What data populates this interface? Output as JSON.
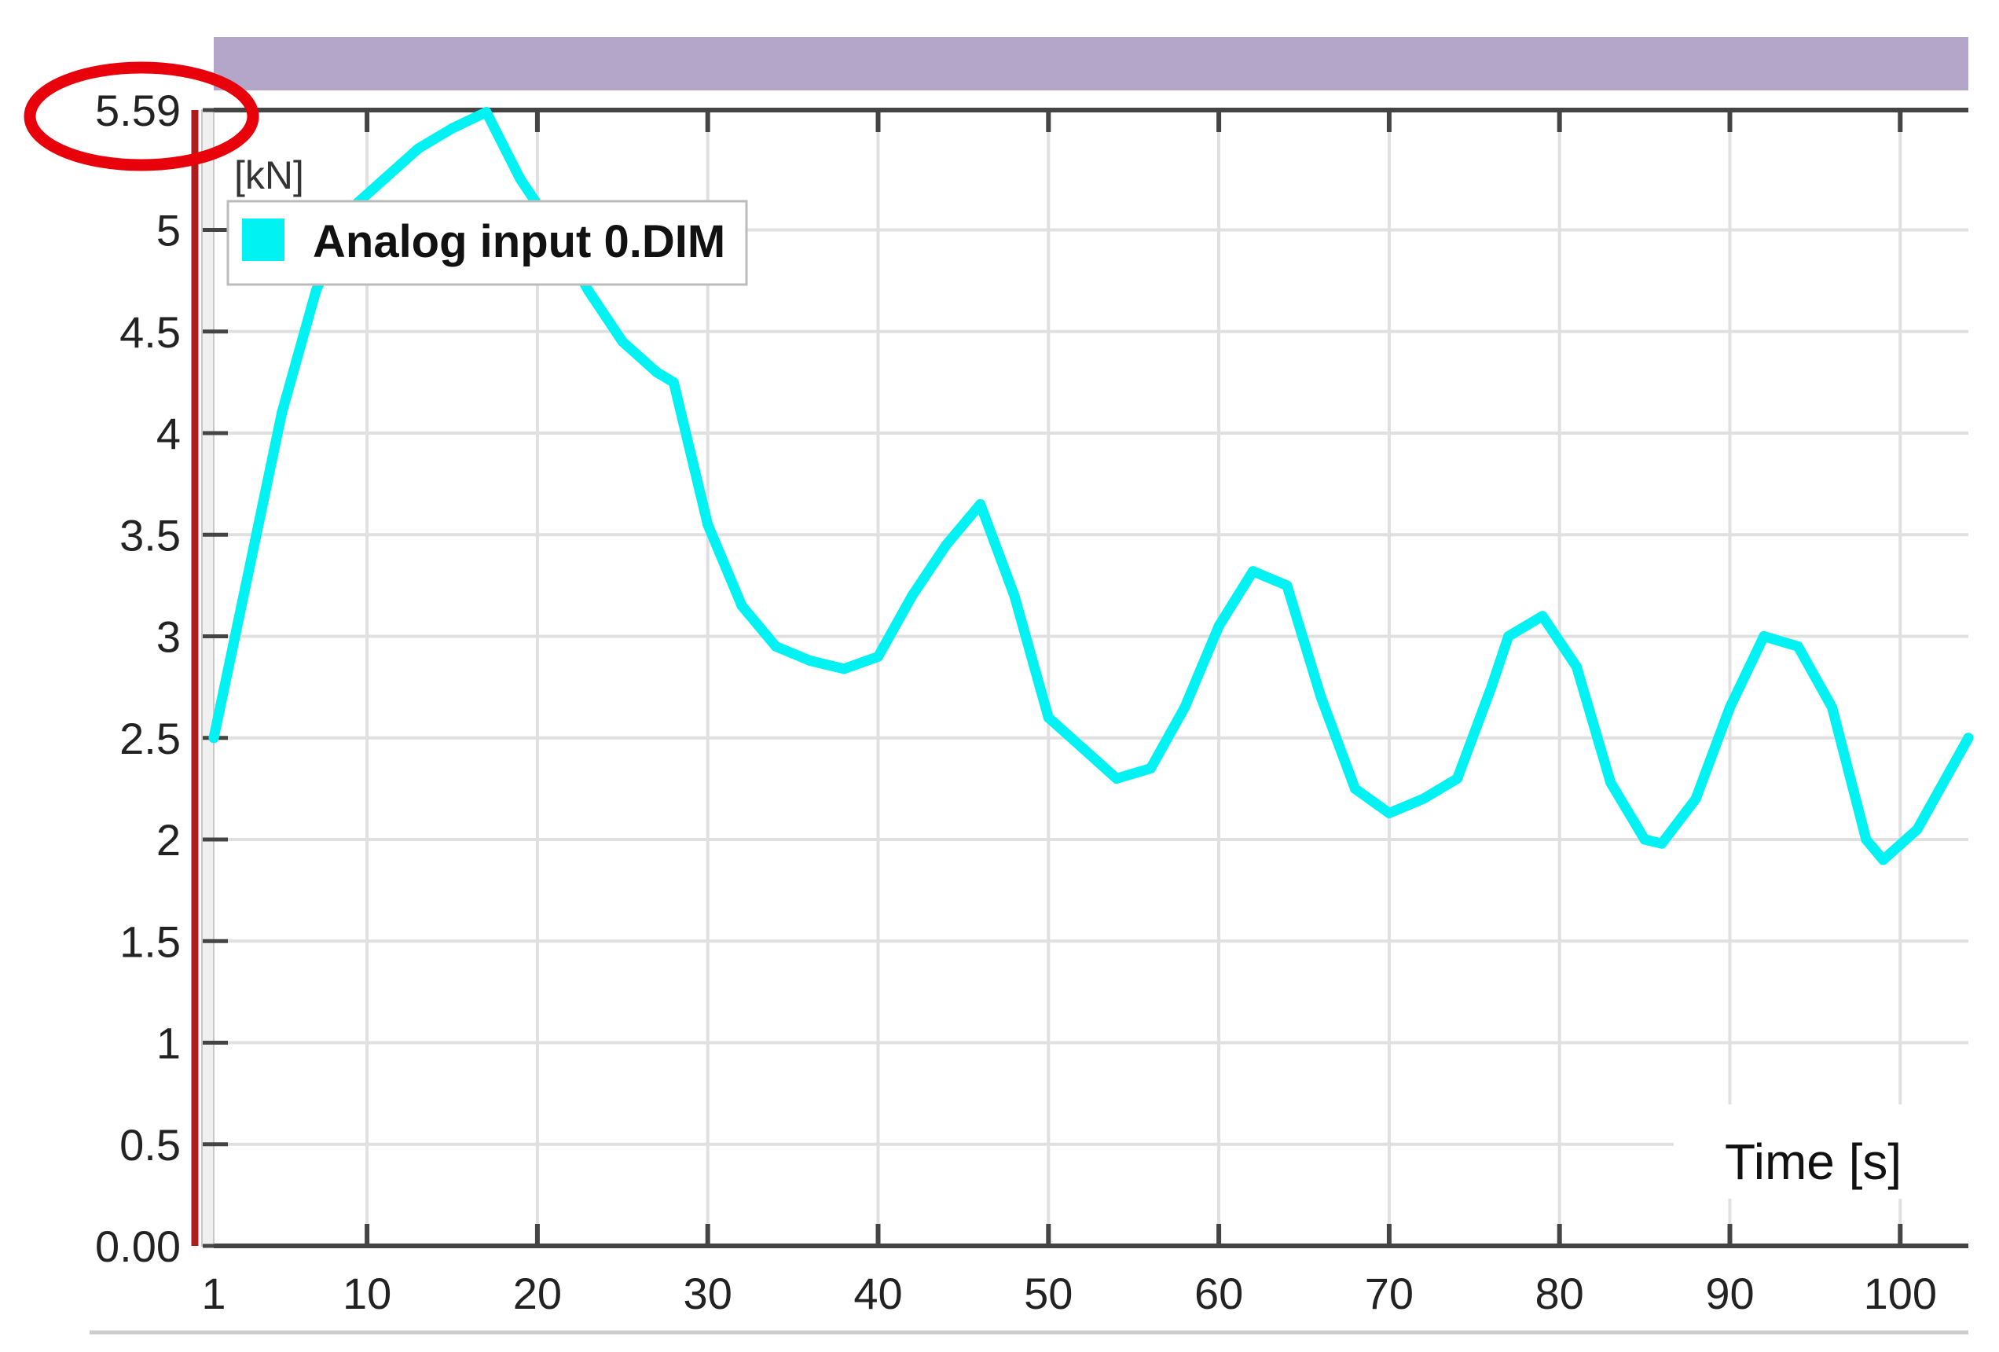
{
  "chart_data": {
    "type": "line",
    "ylabel": "[kN]",
    "xlabel": "Time [s]",
    "y_ticks": [
      0,
      0.5,
      1,
      1.5,
      2,
      2.5,
      3,
      3.5,
      4,
      4.5,
      5,
      5.59
    ],
    "y_tick_labels": [
      "0.00",
      "0.5",
      "1",
      "1.5",
      "2",
      "2.5",
      "3",
      "3.5",
      "4",
      "4.5",
      "5",
      "5.59"
    ],
    "x_ticks": [
      1,
      10,
      20,
      30,
      40,
      50,
      60,
      70,
      80,
      90,
      100
    ],
    "x_tick_labels": [
      "1",
      "10",
      "20",
      "30",
      "40",
      "50",
      "60",
      "70",
      "80",
      "90",
      "100"
    ],
    "xlim": [
      1,
      104
    ],
    "ylim": [
      0,
      5.59
    ],
    "grid": true,
    "legend_position": "top-left",
    "highlight": "red ellipse around the y-axis maximum label 5.59",
    "colors": {
      "series": "#00f2f2",
      "highlight": "#e8000b",
      "axis_bar": "#b01c1c",
      "header_bar": "#b3a6c8",
      "grid": "#e0e0e0",
      "axis": "#444444"
    },
    "series": [
      {
        "name": "Analog input 0.DIM",
        "x": [
          1,
          3,
          5,
          7,
          9,
          11,
          13,
          15,
          17,
          19,
          21,
          23,
          25,
          27,
          28,
          30,
          32,
          34,
          36,
          38,
          40,
          42,
          44,
          46,
          48,
          50,
          52,
          54,
          56,
          58,
          60,
          62,
          64,
          66,
          68,
          70,
          72,
          74,
          76,
          77,
          79,
          81,
          83,
          85,
          86,
          88,
          90,
          92,
          94,
          96,
          98,
          99,
          101,
          104
        ],
        "values": [
          2.5,
          3.3,
          4.1,
          4.7,
          5.1,
          5.25,
          5.4,
          5.5,
          5.58,
          5.25,
          5.0,
          4.7,
          4.45,
          4.3,
          4.25,
          3.55,
          3.15,
          2.95,
          2.88,
          2.84,
          2.9,
          3.2,
          3.45,
          3.65,
          3.2,
          2.6,
          2.45,
          2.3,
          2.35,
          2.65,
          3.05,
          3.32,
          3.25,
          2.7,
          2.25,
          2.13,
          2.2,
          2.3,
          2.75,
          3.0,
          3.1,
          2.85,
          2.28,
          2.0,
          1.98,
          2.2,
          2.65,
          3.0,
          2.95,
          2.65,
          2.0,
          1.9,
          2.05,
          2.5
        ]
      }
    ]
  }
}
